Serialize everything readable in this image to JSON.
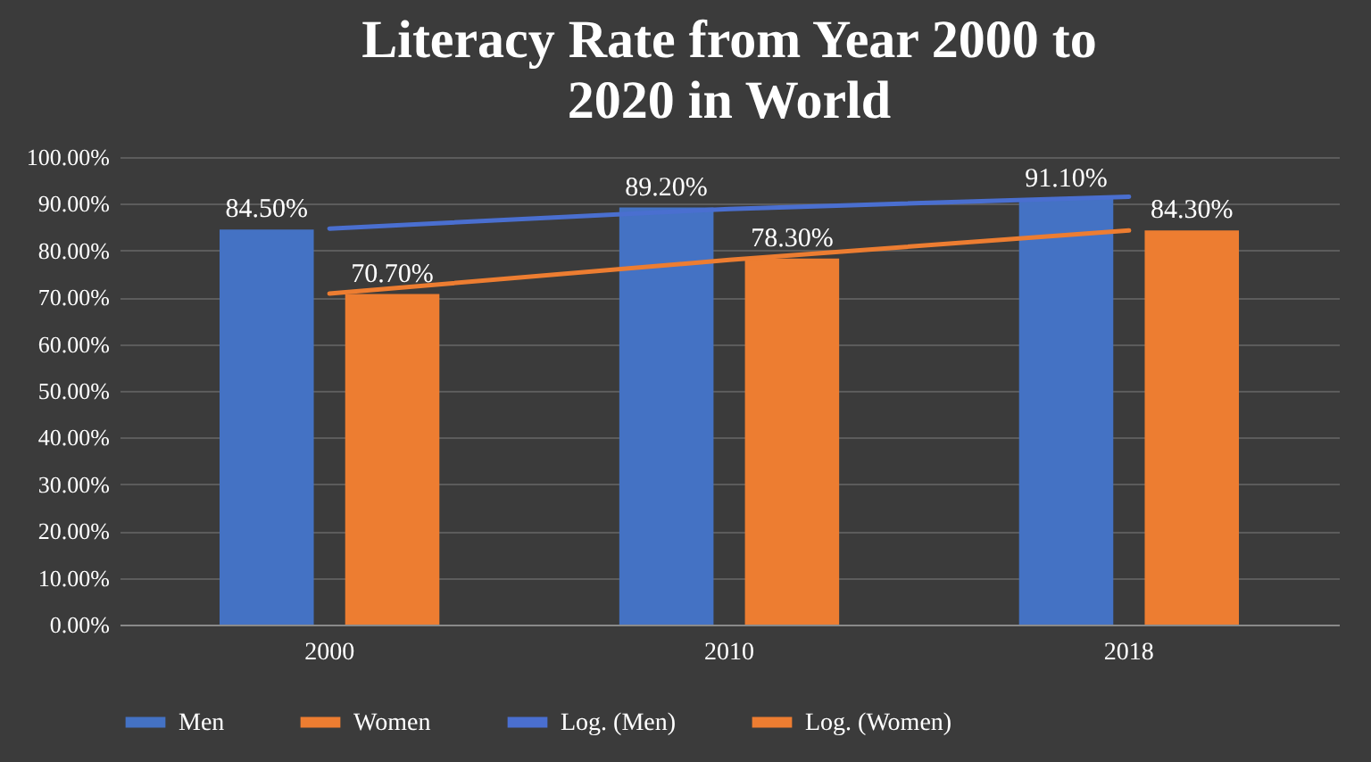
{
  "chart_data": {
    "type": "bar",
    "title": "Literacy Rate from Year 2000 to 2020 in World",
    "categories": [
      "2000",
      "2010",
      "2018"
    ],
    "series": [
      {
        "name": "Men",
        "color": "#4472c4",
        "values": [
          84.5,
          89.2,
          91.1
        ],
        "value_labels": [
          "84.50%",
          "89.20%",
          "91.10%"
        ]
      },
      {
        "name": "Women",
        "color": "#ed7d31",
        "values": [
          70.7,
          78.3,
          84.3
        ],
        "value_labels": [
          "70.70%",
          "78.30%",
          "84.30%"
        ]
      },
      {
        "name": "Log. (Men)",
        "type": "line",
        "color": "#4a6fd0",
        "values": [
          84.7,
          88.9,
          91.5
        ]
      },
      {
        "name": "Log. (Women)",
        "type": "line",
        "color": "#ed7d31",
        "values": [
          70.8,
          78.0,
          84.3
        ]
      }
    ],
    "ylim": [
      0,
      100
    ],
    "yticks": [
      {
        "value": 0,
        "label": "0.00%"
      },
      {
        "value": 10,
        "label": "10.00%"
      },
      {
        "value": 20,
        "label": "20.00%"
      },
      {
        "value": 30,
        "label": "30.00%"
      },
      {
        "value": 40,
        "label": "40.00%"
      },
      {
        "value": 50,
        "label": "50.00%"
      },
      {
        "value": 60,
        "label": "60.00%"
      },
      {
        "value": 70,
        "label": "70.00%"
      },
      {
        "value": 80,
        "label": "80.00%"
      },
      {
        "value": 90,
        "label": "90.00%"
      },
      {
        "value": 100,
        "label": "100.00%"
      }
    ],
    "grid": "y",
    "legend": "bottom"
  }
}
